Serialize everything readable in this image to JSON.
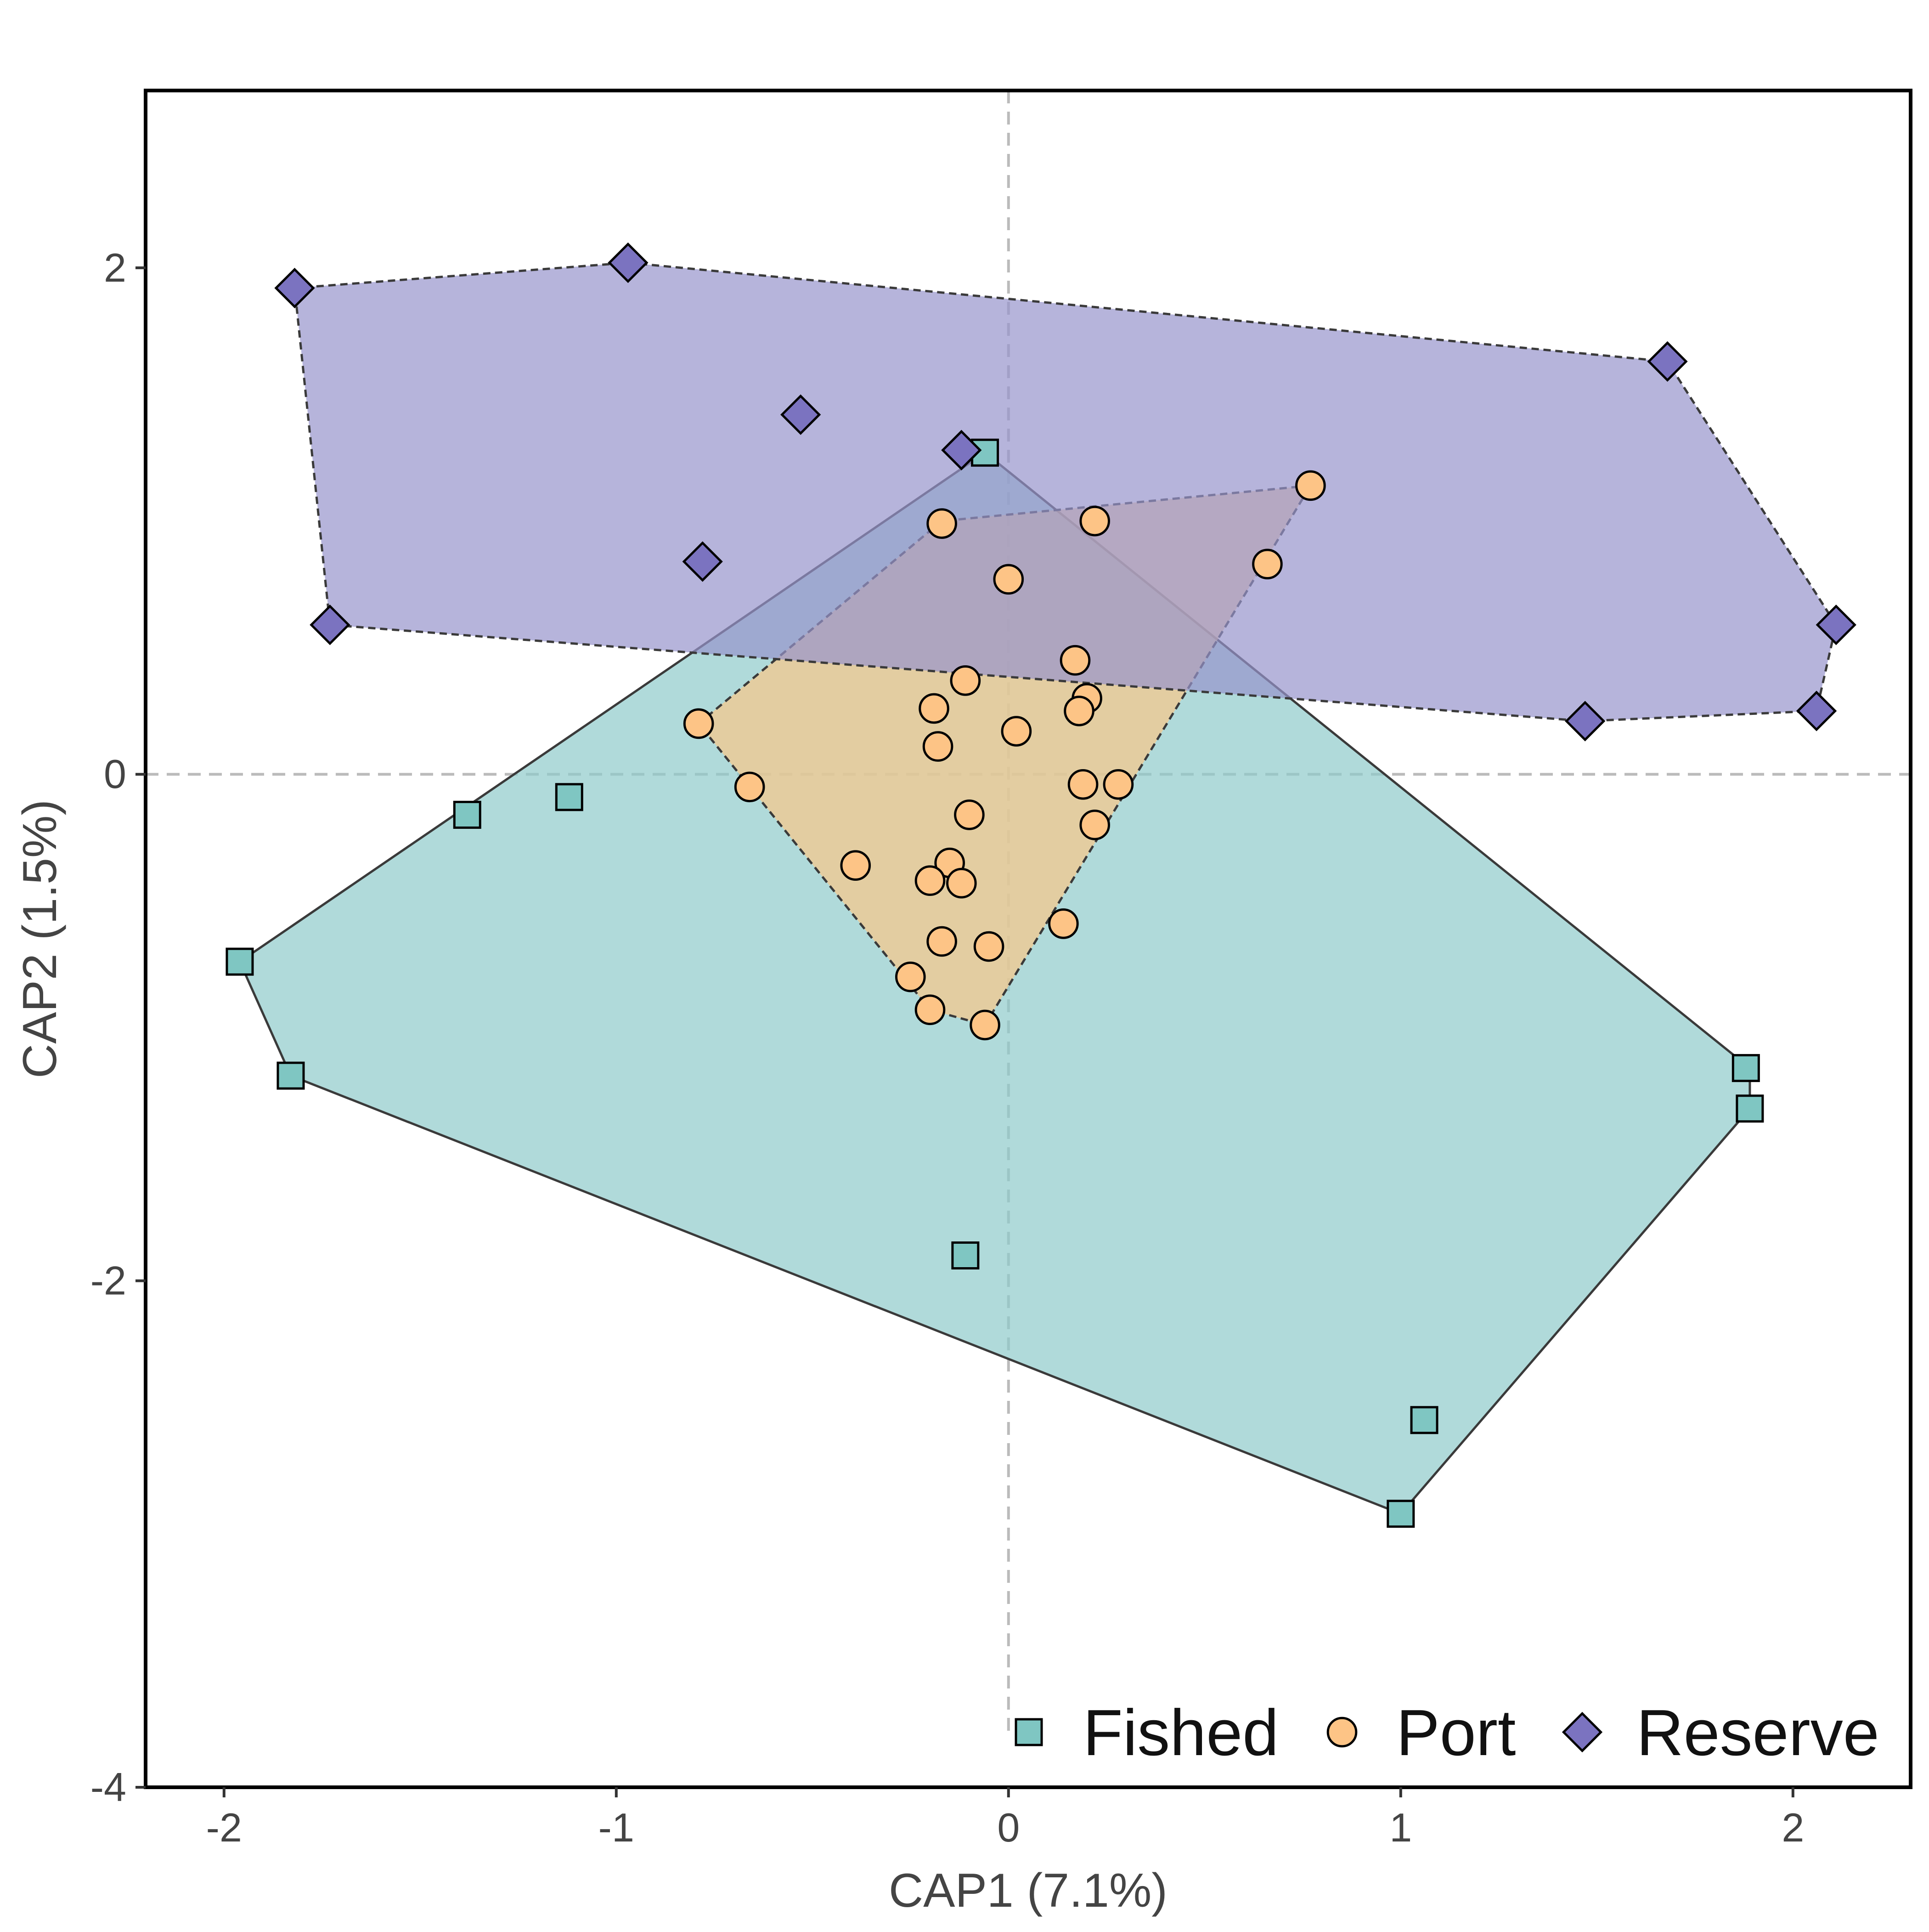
{
  "chart_data": {
    "type": "scatter",
    "title": "",
    "xlabel": "CAP1 (7.1%)",
    "ylabel": "CAP2 (1.5%)",
    "xlim": [
      -2.2,
      2.3
    ],
    "ylim": [
      -4.0,
      2.7
    ],
    "x_ticks": [
      -2,
      -1,
      0,
      1,
      2
    ],
    "y_ticks": [
      -4,
      -2,
      0,
      2
    ],
    "x_tick_labels": [
      "-2",
      "-1",
      "0",
      "1",
      "2"
    ],
    "y_tick_labels": [
      "-4",
      "-2",
      "0",
      "2"
    ],
    "grid": false,
    "reference_lines": [
      {
        "axis": "x",
        "value": 0,
        "style": "dashed",
        "color": "#bbbbbb"
      },
      {
        "axis": "y",
        "value": 0,
        "style": "dashed",
        "color": "#bbbbbb"
      }
    ],
    "legend": {
      "position": "bottom-right",
      "orientation": "horizontal"
    },
    "series": [
      {
        "name": "Fished",
        "marker": "square",
        "color": "#7FC6C2",
        "hull_fill": "#8ECBCA",
        "hull_line_style": "solid",
        "hull": [
          [
            -0.06,
            1.27
          ],
          [
            1.89,
            -1.16
          ],
          [
            1.89,
            -1.32
          ],
          [
            1.0,
            -2.92
          ],
          [
            -1.83,
            -1.19
          ],
          [
            -1.96,
            -0.74
          ]
        ],
        "x": [
          -0.06,
          -1.12,
          -1.38,
          -1.96,
          -1.83,
          1.88,
          1.89,
          -0.11,
          1.06,
          1.0
        ],
        "y": [
          1.27,
          -0.09,
          -0.16,
          -0.74,
          -1.19,
          -1.16,
          -1.32,
          -1.9,
          -2.55,
          -2.92
        ]
      },
      {
        "name": "Port",
        "marker": "circle",
        "color": "#FDC486",
        "hull_fill": "#FAC889",
        "hull_line_style": "dashed",
        "hull": [
          [
            0.77,
            1.14
          ],
          [
            -0.17,
            1.0
          ],
          [
            -0.79,
            0.2
          ],
          [
            -0.2,
            -0.93
          ],
          [
            -0.06,
            -0.99
          ]
        ],
        "x": [
          0.77,
          -0.17,
          0.22,
          0.66,
          0.0,
          0.17,
          -0.11,
          0.2,
          -0.19,
          0.18,
          0.02,
          -0.79,
          -0.18,
          -0.66,
          0.19,
          0.28,
          -0.1,
          0.22,
          -0.39,
          -0.15,
          -0.2,
          -0.12,
          0.14,
          -0.17,
          -0.05,
          -0.25,
          -0.2,
          -0.06
        ],
        "y": [
          1.14,
          0.99,
          1.0,
          0.83,
          0.77,
          0.45,
          0.37,
          0.3,
          0.26,
          0.25,
          0.17,
          0.2,
          0.11,
          -0.05,
          -0.04,
          -0.04,
          -0.16,
          -0.2,
          -0.36,
          -0.35,
          -0.42,
          -0.43,
          -0.59,
          -0.66,
          -0.68,
          -0.8,
          -0.93,
          -0.99
        ]
      },
      {
        "name": "Reserve",
        "marker": "diamond",
        "color": "#7B73C0",
        "hull_fill": "#9794CC",
        "hull_line_style": "dashed",
        "hull": [
          [
            -0.97,
            2.02
          ],
          [
            1.68,
            1.63
          ],
          [
            2.11,
            0.59
          ],
          [
            2.06,
            0.25
          ],
          [
            1.47,
            0.21
          ],
          [
            -1.73,
            0.59
          ],
          [
            -1.82,
            1.92
          ]
        ],
        "x": [
          -0.97,
          -1.82,
          1.68,
          -0.53,
          -0.12,
          -0.78,
          -1.73,
          2.11,
          2.06,
          1.47
        ],
        "y": [
          2.02,
          1.92,
          1.63,
          1.42,
          1.28,
          0.84,
          0.59,
          0.59,
          0.25,
          0.21
        ]
      }
    ]
  }
}
